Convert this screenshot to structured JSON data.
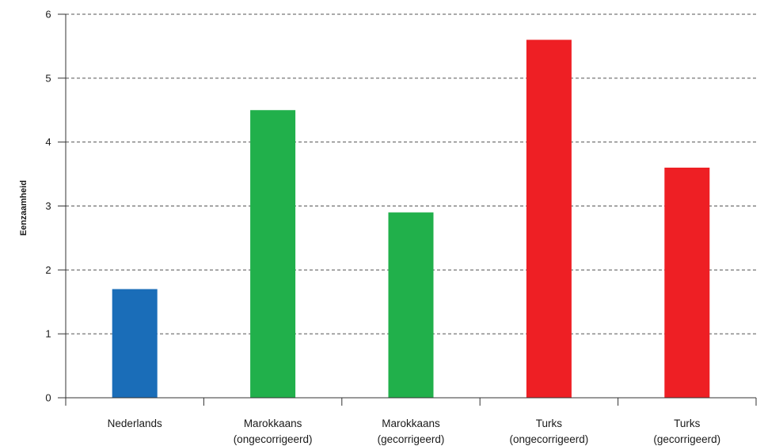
{
  "chart_data": {
    "type": "bar",
    "title": "",
    "xlabel": "",
    "ylabel": "Eenzaamheid",
    "ylim": [
      0,
      6
    ],
    "yticks": [
      0,
      1,
      2,
      3,
      4,
      5,
      6
    ],
    "grid": true,
    "categories": [
      [
        "Nederlands"
      ],
      [
        "Marokkaans",
        "(ongecorrigeerd)"
      ],
      [
        "Marokkaans",
        "(gecorrigeerd)"
      ],
      [
        "Turks",
        "(ongecorrigeerd)"
      ],
      [
        "Turks",
        "(gecorrigeerd)"
      ]
    ],
    "values": [
      1.7,
      4.5,
      2.9,
      5.6,
      3.6
    ],
    "colors": [
      "#1a6db8",
      "#21b04b",
      "#21b04b",
      "#ee1f24",
      "#ee1f24"
    ]
  }
}
